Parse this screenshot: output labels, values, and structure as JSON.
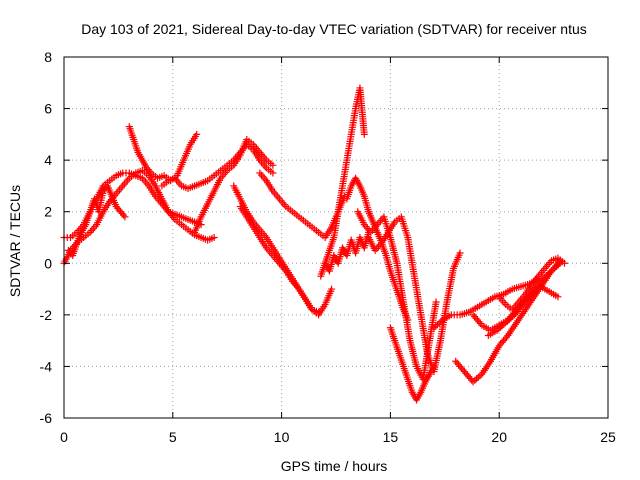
{
  "chart_data": {
    "type": "scatter",
    "title": "Day 103 of 2021, Sidereal Day-to-day VTEC variation (SDTVAR) for receiver ntus",
    "xlabel": "GPS time / hours",
    "ylabel": "SDTVAR / TECUs",
    "xlim": [
      0,
      25
    ],
    "ylim": [
      -6,
      8
    ],
    "xticks": [
      "0",
      "5",
      "10",
      "15",
      "20",
      "25"
    ],
    "yticks": [
      "-6",
      "-4",
      "-2",
      "0",
      "2",
      "4",
      "6",
      "8"
    ],
    "grid": true,
    "marker": "plus",
    "color": "#ff0000",
    "series": [
      {
        "x": [
          0.0,
          0.3,
          0.6,
          0.9,
          1.2,
          1.5,
          1.8,
          2.1,
          2.4,
          2.7,
          3.0,
          3.3,
          3.6,
          3.9,
          4.2,
          4.5,
          4.8,
          5.1,
          5.4,
          5.7,
          6.0,
          6.3,
          6.6,
          6.9
        ],
        "y": [
          0.0,
          0.5,
          0.8,
          1.0,
          1.2,
          1.5,
          2.0,
          2.4,
          2.7,
          3.0,
          3.3,
          3.5,
          3.6,
          3.4,
          3.0,
          2.5,
          2.0,
          1.7,
          1.5,
          1.3,
          1.1,
          1.0,
          0.9,
          1.0
        ]
      },
      {
        "x": [
          0.0,
          0.3,
          0.6,
          0.9,
          1.2,
          1.5,
          1.8,
          2.1,
          2.4,
          2.7,
          3.0,
          3.3,
          3.6,
          3.9,
          4.2,
          4.5,
          4.8,
          5.1,
          5.4,
          5.7,
          6.0,
          6.3
        ],
        "y": [
          1.0,
          1.0,
          1.2,
          1.5,
          2.0,
          2.5,
          3.0,
          3.2,
          3.4,
          3.5,
          3.5,
          3.4,
          3.3,
          3.0,
          2.6,
          2.3,
          2.0,
          1.9,
          1.8,
          1.7,
          1.6,
          1.5
        ]
      },
      {
        "x": [
          0.2,
          0.4,
          0.6,
          0.8,
          1.0,
          1.2,
          1.4,
          1.6,
          1.8,
          2.0,
          2.2,
          2.4,
          2.6,
          2.8
        ],
        "y": [
          0.5,
          0.3,
          0.8,
          1.2,
          1.5,
          2.0,
          2.5,
          2.0,
          2.8,
          3.0,
          2.6,
          2.2,
          2.0,
          1.8
        ]
      },
      {
        "x": [
          3.0,
          3.2,
          3.4,
          3.6,
          3.8,
          4.0,
          4.3,
          4.6,
          4.9,
          5.2,
          5.5,
          5.8,
          6.1
        ],
        "y": [
          5.3,
          4.8,
          4.3,
          4.0,
          3.7,
          3.5,
          3.3,
          3.4,
          3.2,
          3.4,
          4.0,
          4.6,
          5.0
        ]
      },
      {
        "x": [
          4.5,
          4.8,
          5.1,
          5.4,
          5.7,
          6.0,
          6.3,
          6.6,
          6.9,
          7.2,
          7.5,
          7.8,
          8.1,
          8.4,
          8.7,
          9.0,
          9.3,
          9.6
        ],
        "y": [
          3.0,
          3.2,
          3.3,
          3.0,
          2.9,
          3.0,
          3.1,
          3.2,
          3.4,
          3.6,
          3.8,
          4.0,
          4.3,
          4.6,
          4.4,
          4.0,
          3.7,
          3.5
        ]
      },
      {
        "x": [
          6.0,
          6.3,
          6.6,
          6.9,
          7.2,
          7.5,
          7.8,
          8.1,
          8.4,
          8.7,
          9.0,
          9.3,
          9.6
        ],
        "y": [
          1.2,
          1.8,
          2.3,
          2.8,
          3.3,
          3.6,
          3.8,
          4.2,
          4.8,
          4.6,
          4.3,
          4.0,
          3.8
        ]
      },
      {
        "x": [
          7.8,
          8.1,
          8.4,
          8.7,
          9.0,
          9.3,
          9.6,
          9.9,
          10.2,
          10.5,
          10.8,
          11.1,
          11.4,
          11.7,
          12.0,
          12.3
        ],
        "y": [
          3.0,
          2.5,
          2.0,
          1.6,
          1.3,
          1.0,
          0.6,
          0.2,
          -0.2,
          -0.6,
          -1.0,
          -1.4,
          -1.8,
          -2.0,
          -1.6,
          -1.0
        ]
      },
      {
        "x": [
          8.1,
          8.4,
          8.7,
          9.0,
          9.3,
          9.6,
          9.9,
          10.2,
          10.5,
          10.8,
          11.1,
          11.4,
          11.7
        ],
        "y": [
          2.2,
          1.8,
          1.4,
          1.0,
          0.6,
          0.3,
          0.0,
          -0.3,
          -0.7,
          -1.0,
          -1.4,
          -1.8,
          -1.9
        ]
      },
      {
        "x": [
          9.0,
          9.3,
          9.6,
          9.9,
          10.2,
          10.5,
          10.8,
          11.1,
          11.4,
          11.7,
          12.0,
          12.3,
          12.6,
          12.9
        ],
        "y": [
          3.5,
          3.2,
          2.8,
          2.5,
          2.2,
          2.0,
          1.8,
          1.6,
          1.4,
          1.2,
          1.0,
          1.4,
          2.0,
          2.6
        ]
      },
      {
        "x": [
          12.0,
          12.2,
          12.4,
          12.6,
          12.8,
          13.0,
          13.2,
          13.4,
          13.6,
          13.8
        ],
        "y": [
          0.0,
          0.5,
          1.0,
          2.0,
          3.0,
          4.0,
          5.0,
          6.0,
          6.8,
          5.0
        ]
      },
      {
        "x": [
          11.8,
          12.0,
          12.2,
          12.4,
          12.6,
          12.8,
          13.0,
          13.2,
          13.4,
          13.6,
          13.8,
          14.0
        ],
        "y": [
          -0.5,
          0.0,
          -0.3,
          0.3,
          0.0,
          0.6,
          0.3,
          0.9,
          0.4,
          1.0,
          0.6,
          1.2
        ]
      },
      {
        "x": [
          13.0,
          13.2,
          13.4,
          13.6,
          13.8,
          14.0,
          14.2,
          14.4,
          14.6,
          14.8,
          15.0,
          15.2,
          15.4,
          15.6,
          15.8
        ],
        "y": [
          2.5,
          3.0,
          3.3,
          3.0,
          2.6,
          2.0,
          1.6,
          1.2,
          0.8,
          0.3,
          -0.3,
          -0.8,
          -1.3,
          -1.8,
          -2.2
        ]
      },
      {
        "x": [
          13.5,
          13.8,
          14.1,
          14.4,
          14.7,
          15.0,
          15.3,
          15.6,
          15.9,
          16.2,
          16.5,
          16.8,
          17.1
        ],
        "y": [
          2.0,
          1.5,
          1.2,
          1.5,
          1.8,
          1.0,
          0.0,
          -1.5,
          -3.0,
          -4.0,
          -4.5,
          -3.0,
          -1.5
        ]
      },
      {
        "x": [
          14.0,
          14.3,
          14.6,
          14.9,
          15.2,
          15.5,
          15.8,
          16.1,
          16.4,
          16.7,
          17.0,
          17.3,
          17.6,
          17.9,
          18.2
        ],
        "y": [
          1.0,
          0.5,
          0.8,
          1.2,
          1.6,
          1.8,
          1.0,
          -0.5,
          -2.0,
          -3.5,
          -4.2,
          -3.0,
          -1.5,
          -0.2,
          0.4
        ]
      },
      {
        "x": [
          15.0,
          15.2,
          15.4,
          15.6,
          15.8,
          16.0,
          16.2,
          16.4,
          16.6,
          16.8,
          17.0
        ],
        "y": [
          -2.5,
          -3.0,
          -3.5,
          -4.0,
          -4.5,
          -5.0,
          -5.3,
          -5.0,
          -4.6,
          -4.3,
          -4.0
        ]
      },
      {
        "x": [
          17.0,
          17.4,
          17.8,
          18.2,
          18.6,
          19.0,
          19.4,
          19.8,
          20.2,
          20.6,
          21.0,
          21.4,
          21.8
        ],
        "y": [
          -2.5,
          -2.2,
          -2.0,
          -2.0,
          -1.9,
          -1.7,
          -1.5,
          -1.3,
          -1.2,
          -1.0,
          -0.9,
          -0.8,
          -0.6
        ]
      },
      {
        "x": [
          18.0,
          18.4,
          18.8,
          19.2,
          19.6,
          20.0,
          20.4,
          20.8,
          21.2,
          21.6,
          22.0,
          22.4,
          22.8
        ],
        "y": [
          -3.8,
          -4.2,
          -4.6,
          -4.3,
          -3.8,
          -3.2,
          -2.8,
          -2.3,
          -1.8,
          -1.3,
          -0.8,
          -0.3,
          0.0
        ]
      },
      {
        "x": [
          18.8,
          19.2,
          19.6,
          20.0,
          20.4,
          20.8,
          21.2,
          21.6,
          22.0,
          22.4,
          22.8
        ],
        "y": [
          -2.0,
          -2.4,
          -2.6,
          -2.4,
          -2.2,
          -1.8,
          -1.4,
          -1.0,
          -0.6,
          -0.3,
          0.1
        ]
      },
      {
        "x": [
          19.5,
          19.9,
          20.3,
          20.7,
          21.1,
          21.5,
          21.9,
          22.3,
          22.7
        ],
        "y": [
          -2.8,
          -2.6,
          -2.3,
          -2.0,
          -1.6,
          -1.2,
          -0.9,
          -1.1,
          -1.3
        ]
      },
      {
        "x": [
          20.0,
          20.3,
          20.6,
          20.9,
          21.2,
          21.5,
          21.8,
          22.1,
          22.4,
          22.7,
          23.0
        ],
        "y": [
          -1.3,
          -1.6,
          -1.8,
          -1.5,
          -1.2,
          -0.8,
          -0.5,
          -0.2,
          0.1,
          0.2,
          0.0
        ]
      }
    ]
  }
}
